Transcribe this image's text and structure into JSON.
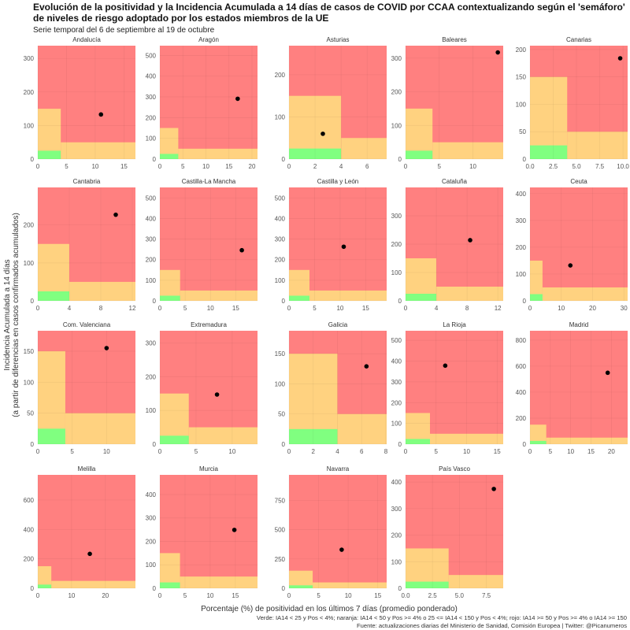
{
  "chart_data": {
    "type": "scatter",
    "title_line1": "Evolución de la positividad y la Incidencia Acumulada a 14 días de casos de COVID por CCAA contextualizando según el 'semáforo'",
    "title_line2": "de niveles de riesgo adoptado por los estados miembros de la UE",
    "subtitle": "Serie temporal del 6 de septiembre al 19 de octubre",
    "xlabel": "Porcentaje (%) de positividad en los últimos 7 días (promedio ponderado)",
    "ylabel_line1": "Incidencia Acumulada a 14 días",
    "ylabel_line2": "(a partir de diferencias en casos confirmados acumulados)",
    "caption_line1": "Verde: IA14 < 25 y Pos < 4%; naranja: IA14 < 50 y Pos >= 4% o 25 <= IA14 < 150 y Pos < 4%; rojo: IA14 >= 50 y Pos >= 4% o IA14 >= 150",
    "caption_line2": "Fuente: actualizaciones diarias del Ministerio de Sanidad, Comisión Europea | Twitter: @Picanumeros",
    "grid": true,
    "zones": {
      "green": {
        "color": "#80FF80",
        "pos_max": 4,
        "ia14_max": 25
      },
      "orange": {
        "color": "#FFD280",
        "pos_threshold": 4,
        "ia14_max_low_pos": 150,
        "ia14_max_high_pos": 50
      },
      "red": {
        "color": "#FF8080"
      }
    },
    "point_color": "#000000",
    "panels": [
      {
        "name": "Andalucía",
        "xlim": [
          0,
          17
        ],
        "ylim": [
          0,
          338
        ],
        "xticks": [
          "0",
          "5",
          "10",
          "15"
        ],
        "yticks": [
          "0",
          "100",
          "200",
          "300"
        ],
        "point": {
          "x": 11,
          "y": 133
        }
      },
      {
        "name": "Aragón",
        "xlim": [
          0,
          21.2
        ],
        "ylim": [
          0,
          547
        ],
        "xticks": [
          "0",
          "5",
          "10",
          "15",
          "20"
        ],
        "yticks": [
          "0",
          "100",
          "200",
          "300",
          "400",
          "500"
        ],
        "point": {
          "x": 16.9,
          "y": 291
        }
      },
      {
        "name": "Asturias",
        "xlim": [
          0,
          7.5
        ],
        "ylim": [
          0,
          269
        ],
        "xticks": [
          "0",
          "2",
          "4",
          "6"
        ],
        "yticks": [
          "0",
          "100",
          "200"
        ],
        "point": {
          "x": 2.6,
          "y": 60
        }
      },
      {
        "name": "Baleares",
        "xlim": [
          0,
          14.5
        ],
        "ylim": [
          0,
          337
        ],
        "xticks": [
          "0",
          "5",
          "10"
        ],
        "yticks": [
          "0",
          "100",
          "200",
          "300"
        ],
        "point": {
          "x": 13.7,
          "y": 317
        }
      },
      {
        "name": "Canarias",
        "xlim": [
          0,
          10.5
        ],
        "ylim": [
          0,
          207
        ],
        "xticks": [
          "0.0",
          "2.5",
          "5.0",
          "7.5",
          "10.0"
        ],
        "yticks": [
          "0",
          "50",
          "100",
          "150",
          "200"
        ],
        "point": {
          "x": 9.7,
          "y": 184
        }
      },
      {
        "name": "Cantabria",
        "xlim": [
          0,
          12.4
        ],
        "ylim": [
          0,
          299
        ],
        "xticks": [
          "0",
          "4",
          "8",
          "12"
        ],
        "yticks": [
          "0",
          "100",
          "200"
        ],
        "point": {
          "x": 9.9,
          "y": 227
        }
      },
      {
        "name": "Castilla-La Mancha",
        "xlim": [
          0,
          19.3
        ],
        "ylim": [
          0,
          551
        ],
        "xticks": [
          "0",
          "5",
          "10",
          "15"
        ],
        "yticks": [
          "0",
          "100",
          "200",
          "300",
          "400",
          "500"
        ],
        "point": {
          "x": 16.2,
          "y": 246
        }
      },
      {
        "name": "Castilla y León",
        "xlim": [
          0,
          19.1
        ],
        "ylim": [
          0,
          551
        ],
        "xticks": [
          "0",
          "5",
          "10",
          "15"
        ],
        "yticks": [
          "0",
          "100",
          "200",
          "300",
          "400",
          "500"
        ],
        "point": {
          "x": 10.7,
          "y": 263
        }
      },
      {
        "name": "Cataluña",
        "xlim": [
          0,
          12.7
        ],
        "ylim": [
          0,
          400
        ],
        "xticks": [
          "0",
          "4",
          "8",
          "12"
        ],
        "yticks": [
          "0",
          "100",
          "200",
          "300"
        ],
        "point": {
          "x": 8.4,
          "y": 214
        }
      },
      {
        "name": "Ceuta",
        "xlim": [
          0,
          31.2
        ],
        "ylim": [
          0,
          423
        ],
        "xticks": [
          "0",
          "10",
          "20",
          "30"
        ],
        "yticks": [
          "0",
          "100",
          "200",
          "300",
          "400"
        ],
        "point": {
          "x": 12.9,
          "y": 132
        }
      },
      {
        "name": "Com. Valenciana",
        "xlim": [
          0,
          14.2
        ],
        "ylim": [
          0,
          183
        ],
        "xticks": [
          "0",
          "5",
          "10"
        ],
        "yticks": [
          "0",
          "50",
          "100",
          "150"
        ],
        "point": {
          "x": 10,
          "y": 155
        }
      },
      {
        "name": "Extremadura",
        "xlim": [
          0,
          13.5
        ],
        "ylim": [
          0,
          336
        ],
        "xticks": [
          "0",
          "5",
          "10"
        ],
        "yticks": [
          "0",
          "100",
          "200",
          "300"
        ],
        "point": {
          "x": 7.9,
          "y": 147
        }
      },
      {
        "name": "Galicia",
        "xlim": [
          0,
          8.07
        ],
        "ylim": [
          0,
          188
        ],
        "xticks": [
          "0",
          "2",
          "4",
          "6",
          "8"
        ],
        "yticks": [
          "0",
          "50",
          "100",
          "150"
        ],
        "point": {
          "x": 6.4,
          "y": 129
        }
      },
      {
        "name": "La Rioja",
        "xlim": [
          0,
          16
        ],
        "ylim": [
          0,
          546
        ],
        "xticks": [
          "0",
          "5",
          "10",
          "15"
        ],
        "yticks": [
          "0",
          "100",
          "200",
          "300",
          "400",
          "500"
        ],
        "point": {
          "x": 6.5,
          "y": 378
        }
      },
      {
        "name": "Madrid",
        "xlim": [
          0,
          24
        ],
        "ylim": [
          0,
          872
        ],
        "xticks": [
          "0",
          "5",
          "10",
          "15",
          "20"
        ],
        "yticks": [
          "0",
          "200",
          "400",
          "600",
          "800"
        ],
        "point": {
          "x": 19.1,
          "y": 549
        }
      },
      {
        "name": "Melilla",
        "xlim": [
          0,
          28.9
        ],
        "ylim": [
          0,
          771
        ],
        "xticks": [
          "0",
          "10",
          "20"
        ],
        "yticks": [
          "0",
          "200",
          "400",
          "600"
        ],
        "point": {
          "x": 15.4,
          "y": 234
        }
      },
      {
        "name": "Murcia",
        "xlim": [
          0,
          19.4
        ],
        "ylim": [
          0,
          484
        ],
        "xticks": [
          "0",
          "5",
          "10",
          "15"
        ],
        "yticks": [
          "0",
          "100",
          "200",
          "300",
          "400"
        ],
        "point": {
          "x": 14.8,
          "y": 249
        }
      },
      {
        "name": "Navarra",
        "xlim": [
          0,
          16.5
        ],
        "ylim": [
          0,
          968
        ],
        "xticks": [
          "0",
          "5",
          "10",
          "15"
        ],
        "yticks": [
          "0",
          "250",
          "500",
          "750"
        ],
        "point": {
          "x": 8.9,
          "y": 329
        }
      },
      {
        "name": "País Vasco",
        "xlim": [
          0,
          9.07
        ],
        "ylim": [
          0,
          427
        ],
        "xticks": [
          "0.0",
          "2.5",
          "5.0",
          "7.5"
        ],
        "yticks": [
          "0",
          "100",
          "200",
          "300",
          "400"
        ],
        "point": {
          "x": 8.2,
          "y": 374
        }
      }
    ]
  }
}
